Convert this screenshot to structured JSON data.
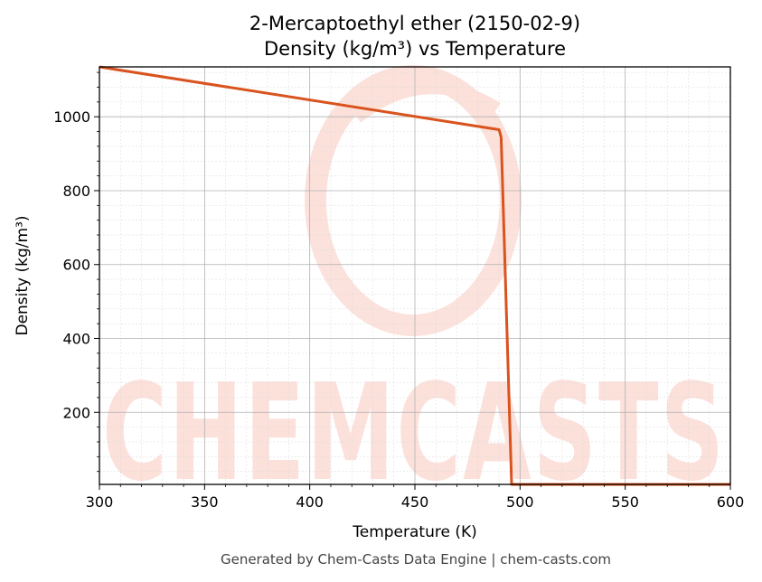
{
  "chart_data": {
    "type": "line",
    "title": "2-Mercaptoethyl ether (2150-02-9)",
    "subtitle": "Density (kg/m³) vs Temperature",
    "xlabel": "Temperature (K)",
    "ylabel": "Density (kg/m³)",
    "xlim": [
      300,
      600
    ],
    "ylim": [
      5,
      1135
    ],
    "x_ticks": [
      300,
      350,
      400,
      450,
      500,
      550,
      600
    ],
    "y_ticks": [
      200,
      400,
      600,
      800,
      1000
    ],
    "grid": true,
    "line_color": "#d9531e",
    "series": [
      {
        "x": [
          300,
          490,
          491,
          496,
          600
        ],
        "y": [
          1135,
          965,
          945,
          5,
          5
        ]
      }
    ]
  },
  "footer": "Generated by Chem-Casts Data Engine | chem-casts.com",
  "watermark": {
    "text": "CHEMCASTS",
    "color": "#fbd8d0"
  }
}
